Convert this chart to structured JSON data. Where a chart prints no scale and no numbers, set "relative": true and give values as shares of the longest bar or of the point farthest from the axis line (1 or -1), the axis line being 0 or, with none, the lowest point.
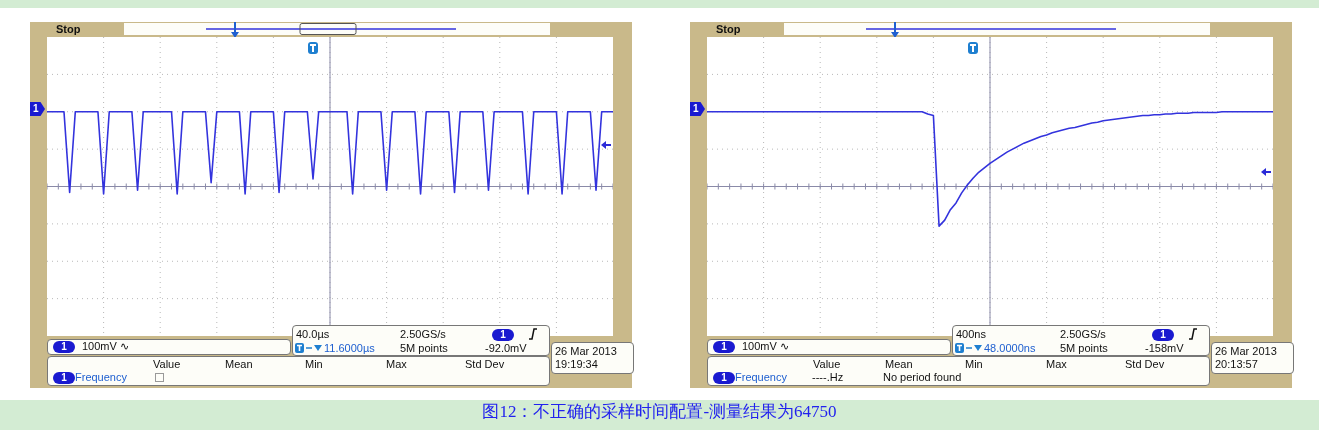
{
  "chart_data": [
    {
      "type": "line",
      "relative": true,
      "grid": true,
      "marker": "none",
      "line_style": "solid",
      "color": "#3333dd",
      "categories": [
        null,
        null,
        null,
        null,
        null,
        null,
        null,
        null,
        null,
        null,
        null,
        null,
        null,
        null,
        null,
        null,
        null,
        null,
        null,
        null,
        null,
        null,
        null,
        null,
        null,
        null,
        null,
        null,
        null,
        null,
        null,
        null,
        null,
        null,
        null,
        null,
        null,
        null,
        null,
        null,
        null,
        null,
        null,
        null,
        null,
        null,
        null,
        null,
        null,
        null,
        null,
        null,
        null,
        null,
        null,
        null,
        null,
        null,
        null,
        null,
        null,
        null,
        null,
        null,
        null,
        null,
        null,
        null,
        null,
        null,
        null,
        null,
        null,
        null,
        null,
        null,
        null,
        null,
        null,
        null,
        null,
        null,
        null,
        null,
        null,
        null,
        null,
        null,
        null,
        null,
        null,
        null,
        null,
        null,
        null,
        null,
        null,
        null,
        null,
        null,
        null
      ],
      "values": [
        1,
        1,
        1,
        1,
        -0.08,
        1,
        1,
        1,
        1,
        1,
        -0.1,
        1,
        1,
        1,
        1,
        1,
        -0.05,
        1,
        1,
        1,
        1,
        1,
        1,
        -0.1,
        1,
        1,
        1,
        1,
        1,
        0.05,
        1,
        1,
        1,
        1,
        1,
        -0.1,
        1,
        1,
        1,
        1,
        1,
        -0.08,
        1,
        1,
        1,
        1,
        1,
        0.1,
        1,
        1,
        1,
        1,
        1,
        1,
        -0.1,
        1,
        1,
        1,
        1,
        1,
        -0.05,
        1,
        1,
        1,
        1,
        1,
        -0.1,
        1,
        1,
        1,
        1,
        1,
        -0.08,
        1,
        1,
        1,
        1,
        1,
        -0.05,
        1,
        1,
        1,
        1,
        1,
        1,
        -0.1,
        1,
        1,
        1,
        1,
        1,
        -0.1,
        1,
        1,
        1,
        1,
        1,
        -0.05,
        1,
        1,
        1
      ],
      "annotations": [
        "Stop",
        "1",
        "1",
        "100mV ∿",
        "40.0µs",
        "2.50GS/s",
        "1",
        "11.6000µs",
        "5M points",
        "-92.0mV",
        "Value",
        "Mean",
        "Min",
        "Max",
        "Std Dev",
        "1",
        "Frequency",
        "26 Mar 2013",
        "19:19:34",
        "图12：不正确的采样时间配置-测量结果为64750"
      ]
    },
    {
      "type": "line",
      "relative": true,
      "grid": true,
      "marker": "none",
      "line_style": "solid",
      "color": "#3333dd",
      "categories": [
        null,
        null,
        null,
        null,
        null,
        null,
        null,
        null,
        null,
        null,
        null,
        null,
        null,
        null,
        null,
        null,
        null,
        null,
        null,
        null,
        null,
        null,
        null,
        null,
        null,
        null,
        null,
        null,
        null,
        null,
        null,
        null,
        null,
        null,
        null,
        null,
        null,
        null,
        null,
        null,
        null,
        null,
        null,
        null,
        null,
        null,
        null,
        null,
        null,
        null,
        null,
        null,
        null,
        null,
        null,
        null,
        null,
        null,
        null,
        null,
        null,
        null,
        null,
        null,
        null,
        null,
        null,
        null,
        null,
        null,
        null,
        null,
        null,
        null,
        null,
        null,
        null,
        null,
        null,
        null,
        null,
        null,
        null,
        null,
        null,
        null,
        null,
        null,
        null,
        null,
        null,
        null,
        null,
        null,
        null,
        null,
        null,
        null,
        null,
        null,
        null
      ],
      "values": [
        1,
        1,
        1,
        1,
        1,
        1,
        1,
        1,
        1,
        1,
        1,
        1,
        1,
        1,
        1,
        1,
        1,
        1,
        1,
        1,
        1,
        1,
        1,
        1,
        1,
        1,
        1,
        1,
        1,
        1,
        1,
        1,
        1,
        1,
        1,
        1,
        1,
        1,
        1,
        0.97,
        0.95,
        -0.53,
        -0.45,
        -0.31,
        -0.22,
        -0.085,
        0.02,
        0.11,
        0.19,
        0.25,
        0.31,
        0.36,
        0.41,
        0.46,
        0.5,
        0.54,
        0.58,
        0.61,
        0.64,
        0.67,
        0.69,
        0.72,
        0.74,
        0.76,
        0.78,
        0.79,
        0.81,
        0.83,
        0.85,
        0.86,
        0.88,
        0.89,
        0.9,
        0.91,
        0.92,
        0.93,
        0.94,
        0.95,
        0.95,
        0.96,
        0.96,
        0.97,
        0.97,
        0.98,
        0.98,
        0.98,
        0.99,
        0.99,
        0.99,
        0.99,
        0.99,
        1,
        1,
        1,
        1,
        1,
        1,
        1,
        1,
        1,
        1
      ],
      "annotations": [
        "Stop",
        "1",
        "1",
        "100mV ∿",
        "400ns",
        "2.50GS/s",
        "1",
        "48.0000ns",
        "5M points",
        "-158mV",
        "Value",
        "Mean",
        "Min",
        "Max",
        "Std Dev",
        "1",
        "Frequency",
        "26 Mar 2013",
        "20:13:57",
        "----.Hz",
        "No period found"
      ]
    }
  ]
}
